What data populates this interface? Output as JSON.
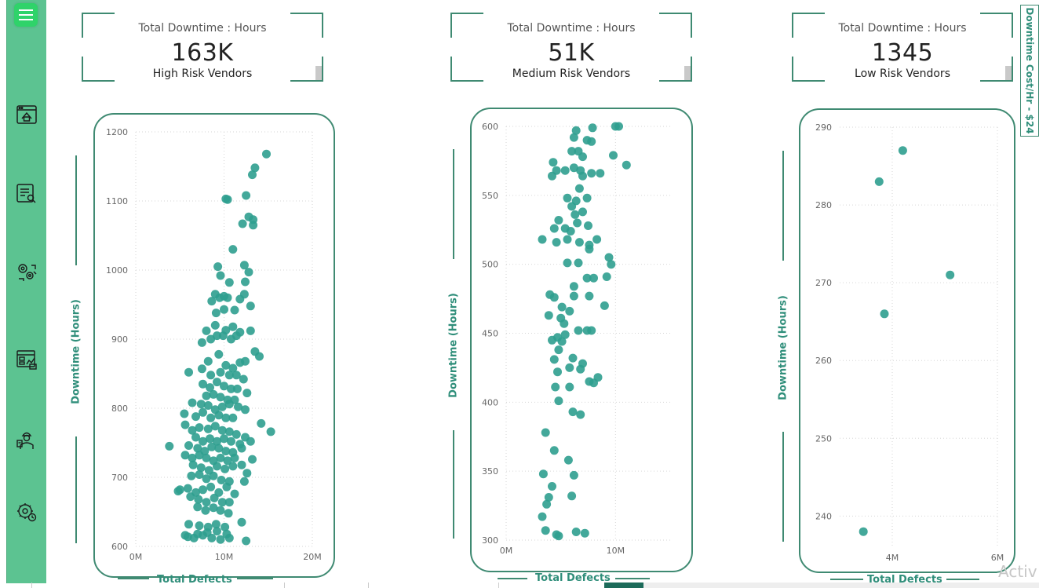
{
  "sidebar": {
    "color": "#5cc391",
    "menu_icon": "hamburger-menu-icon",
    "items": [
      {
        "icon": "home-window-icon"
      },
      {
        "icon": "report-search-icon"
      },
      {
        "icon": "gears-robot-icon"
      },
      {
        "icon": "dashboard-chart-icon"
      },
      {
        "icon": "worker-icon"
      },
      {
        "icon": "settings-clock-icon"
      }
    ]
  },
  "kpis": [
    {
      "title": "Total Downtime : Hours",
      "value": "163K",
      "subtitle": "High Risk Vendors"
    },
    {
      "title": "Total Downtime : Hours",
      "value": "51K",
      "subtitle": "Medium Risk Vendors"
    },
    {
      "title": "Total Downtime : Hours",
      "value": "1345",
      "subtitle": "Low Risk Vendors"
    }
  ],
  "side_tag": "Downtime Cost/Hr - $24",
  "watermark": "Activ",
  "accent_color": "#3f8a72",
  "point_color": "#2f9e8f",
  "chart_data": [
    {
      "type": "scatter",
      "xlabel": "Total Defects",
      "ylabel": "Downtime (Hours)",
      "xlim": [
        0,
        20
      ],
      "ylim": [
        600,
        1200
      ],
      "x_ticks": [
        "0M",
        "10M",
        "20M"
      ],
      "y_ticks": [
        "600",
        "700",
        "800",
        "900",
        "1000",
        "1100",
        "1200"
      ],
      "grid": true,
      "points": [
        [
          14.8,
          1168
        ],
        [
          13.5,
          1148
        ],
        [
          13.2,
          1138
        ],
        [
          12.5,
          1108
        ],
        [
          10.2,
          1103
        ],
        [
          10.4,
          1102
        ],
        [
          12.8,
          1077
        ],
        [
          13.3,
          1073
        ],
        [
          12.1,
          1067
        ],
        [
          13.3,
          1065
        ],
        [
          11.0,
          1030
        ],
        [
          9.3,
          1005
        ],
        [
          12.3,
          1007
        ],
        [
          9.6,
          992
        ],
        [
          12.8,
          997
        ],
        [
          10.6,
          982
        ],
        [
          12.4,
          983
        ],
        [
          9.0,
          965
        ],
        [
          10.0,
          962
        ],
        [
          12.3,
          965
        ],
        [
          8.6,
          955
        ],
        [
          9.5,
          960
        ],
        [
          10.4,
          960
        ],
        [
          11.8,
          958
        ],
        [
          13.0,
          948
        ],
        [
          9.1,
          938
        ],
        [
          10.0,
          943
        ],
        [
          11.2,
          942
        ],
        [
          8.0,
          912
        ],
        [
          9.0,
          920
        ],
        [
          10.2,
          913
        ],
        [
          11.0,
          918
        ],
        [
          11.8,
          910
        ],
        [
          13.0,
          912
        ],
        [
          7.5,
          895
        ],
        [
          8.5,
          900
        ],
        [
          9.2,
          905
        ],
        [
          9.9,
          905
        ],
        [
          10.8,
          900
        ],
        [
          11.4,
          905
        ],
        [
          13.5,
          882
        ],
        [
          14.0,
          875
        ],
        [
          8.2,
          868
        ],
        [
          9.4,
          878
        ],
        [
          10.2,
          862
        ],
        [
          11.0,
          858
        ],
        [
          11.8,
          866
        ],
        [
          12.4,
          868
        ],
        [
          6.0,
          852
        ],
        [
          7.5,
          857
        ],
        [
          8.5,
          848
        ],
        [
          9.6,
          852
        ],
        [
          10.6,
          848
        ],
        [
          11.4,
          848
        ],
        [
          12.2,
          842
        ],
        [
          7.6,
          835
        ],
        [
          8.4,
          830
        ],
        [
          9.2,
          838
        ],
        [
          10.0,
          832
        ],
        [
          10.8,
          828
        ],
        [
          11.5,
          828
        ],
        [
          12.6,
          822
        ],
        [
          8.0,
          818
        ],
        [
          8.8,
          820
        ],
        [
          9.6,
          816
        ],
        [
          10.4,
          812
        ],
        [
          11.2,
          812
        ],
        [
          6.4,
          808
        ],
        [
          7.4,
          806
        ],
        [
          8.2,
          804
        ],
        [
          9.0,
          798
        ],
        [
          9.8,
          802
        ],
        [
          10.6,
          806
        ],
        [
          11.6,
          802
        ],
        [
          12.4,
          798
        ],
        [
          5.5,
          792
        ],
        [
          6.8,
          788
        ],
        [
          7.6,
          794
        ],
        [
          8.5,
          786
        ],
        [
          9.4,
          790
        ],
        [
          10.2,
          786
        ],
        [
          11.0,
          786
        ],
        [
          14.2,
          778
        ],
        [
          15.3,
          766
        ],
        [
          5.6,
          776
        ],
        [
          6.4,
          768
        ],
        [
          7.2,
          772
        ],
        [
          8.2,
          770
        ],
        [
          9.0,
          774
        ],
        [
          9.8,
          768
        ],
        [
          10.6,
          766
        ],
        [
          11.4,
          762
        ],
        [
          12.4,
          758
        ],
        [
          6.8,
          758
        ],
        [
          7.6,
          752
        ],
        [
          8.4,
          756
        ],
        [
          9.2,
          752
        ],
        [
          10.0,
          756
        ],
        [
          10.8,
          752
        ],
        [
          11.8,
          748
        ],
        [
          13.0,
          752
        ],
        [
          3.8,
          745
        ],
        [
          6.0,
          746
        ],
        [
          7.0,
          742
        ],
        [
          7.8,
          738
        ],
        [
          8.6,
          744
        ],
        [
          9.4,
          742
        ],
        [
          10.2,
          738
        ],
        [
          11.0,
          736
        ],
        [
          12.0,
          742
        ],
        [
          5.6,
          732
        ],
        [
          6.4,
          728
        ],
        [
          7.2,
          732
        ],
        [
          8.0,
          728
        ],
        [
          8.8,
          724
        ],
        [
          9.6,
          728
        ],
        [
          10.4,
          724
        ],
        [
          11.2,
          728
        ],
        [
          12.0,
          718
        ],
        [
          13.2,
          726
        ],
        [
          6.5,
          718
        ],
        [
          7.4,
          714
        ],
        [
          8.3,
          710
        ],
        [
          9.2,
          716
        ],
        [
          10.1,
          712
        ],
        [
          11.0,
          716
        ],
        [
          12.6,
          706
        ],
        [
          6.3,
          702
        ],
        [
          7.2,
          704
        ],
        [
          8.0,
          698
        ],
        [
          8.8,
          702
        ],
        [
          9.7,
          696
        ],
        [
          10.6,
          694
        ],
        [
          12.3,
          694
        ],
        [
          5.0,
          682
        ],
        [
          5.9,
          684
        ],
        [
          6.8,
          678
        ],
        [
          7.6,
          682
        ],
        [
          8.5,
          686
        ],
        [
          9.4,
          678
        ],
        [
          10.3,
          686
        ],
        [
          11.2,
          676
        ],
        [
          4.8,
          680
        ],
        [
          6.2,
          672
        ],
        [
          7.1,
          668
        ],
        [
          8.0,
          664
        ],
        [
          8.9,
          670
        ],
        [
          9.8,
          664
        ],
        [
          10.6,
          664
        ],
        [
          7.0,
          657
        ],
        [
          7.9,
          652
        ],
        [
          8.8,
          656
        ],
        [
          9.6,
          652
        ],
        [
          10.5,
          648
        ],
        [
          6.0,
          632
        ],
        [
          7.2,
          630
        ],
        [
          8.2,
          628
        ],
        [
          9.1,
          632
        ],
        [
          10.1,
          628
        ],
        [
          12.0,
          635
        ],
        [
          5.6,
          616
        ],
        [
          6.6,
          612
        ],
        [
          7.6,
          616
        ],
        [
          8.6,
          612
        ],
        [
          9.6,
          610
        ],
        [
          10.6,
          612
        ],
        [
          12.5,
          608
        ],
        [
          5.9,
          614
        ],
        [
          7.0,
          618
        ],
        [
          8.1,
          620
        ],
        [
          9.2,
          622
        ],
        [
          10.3,
          618
        ]
      ]
    },
    {
      "type": "scatter",
      "xlabel": "Total Defects",
      "ylabel": "Downtime (Hours)",
      "xlim": [
        0,
        15
      ],
      "ylim": [
        300,
        600
      ],
      "x_ticks": [
        "0M",
        "10M"
      ],
      "y_ticks": [
        "300",
        "350",
        "400",
        "450",
        "500",
        "550",
        "600"
      ],
      "grid": true,
      "points": [
        [
          6.4,
          597
        ],
        [
          7.9,
          599
        ],
        [
          10.0,
          600
        ],
        [
          10.3,
          600
        ],
        [
          6.2,
          592
        ],
        [
          7.4,
          590
        ],
        [
          7.8,
          589
        ],
        [
          6.0,
          582
        ],
        [
          6.6,
          582
        ],
        [
          7.0,
          578
        ],
        [
          9.8,
          579
        ],
        [
          11.0,
          572
        ],
        [
          4.3,
          574
        ],
        [
          6.2,
          570
        ],
        [
          4.6,
          568
        ],
        [
          5.4,
          568
        ],
        [
          6.8,
          568
        ],
        [
          7.8,
          566
        ],
        [
          8.6,
          566
        ],
        [
          4.2,
          564
        ],
        [
          7.0,
          564
        ],
        [
          6.7,
          555
        ],
        [
          5.6,
          548
        ],
        [
          6.4,
          546
        ],
        [
          7.4,
          548
        ],
        [
          6.0,
          542
        ],
        [
          7.0,
          538
        ],
        [
          6.3,
          536
        ],
        [
          4.8,
          532
        ],
        [
          6.5,
          530
        ],
        [
          5.4,
          526
        ],
        [
          7.5,
          528
        ],
        [
          4.4,
          526
        ],
        [
          5.9,
          524
        ],
        [
          3.3,
          518
        ],
        [
          5.6,
          518
        ],
        [
          6.7,
          516
        ],
        [
          7.6,
          514
        ],
        [
          8.3,
          518
        ],
        [
          4.6,
          516
        ],
        [
          7.6,
          511
        ],
        [
          9.4,
          505
        ],
        [
          5.6,
          501
        ],
        [
          6.6,
          501
        ],
        [
          9.6,
          500
        ],
        [
          8.0,
          490
        ],
        [
          9.2,
          491
        ],
        [
          6.2,
          484
        ],
        [
          7.4,
          490
        ],
        [
          4.0,
          478
        ],
        [
          4.4,
          476
        ],
        [
          5.1,
          469
        ],
        [
          6.2,
          477
        ],
        [
          7.6,
          477
        ],
        [
          9.0,
          470
        ],
        [
          5.8,
          466
        ],
        [
          3.9,
          463
        ],
        [
          5.0,
          461
        ],
        [
          5.3,
          457
        ],
        [
          6.6,
          452
        ],
        [
          7.4,
          452
        ],
        [
          7.8,
          452
        ],
        [
          5.4,
          449
        ],
        [
          4.7,
          447
        ],
        [
          4.2,
          445
        ],
        [
          5.1,
          444
        ],
        [
          4.8,
          438
        ],
        [
          6.1,
          432
        ],
        [
          4.4,
          431
        ],
        [
          7.0,
          428
        ],
        [
          5.8,
          425
        ],
        [
          4.7,
          422
        ],
        [
          6.8,
          424
        ],
        [
          8.4,
          418
        ],
        [
          7.6,
          415
        ],
        [
          8.0,
          414
        ],
        [
          4.5,
          411
        ],
        [
          5.8,
          411
        ],
        [
          4.8,
          401
        ],
        [
          6.1,
          393
        ],
        [
          6.8,
          391
        ],
        [
          3.6,
          378
        ],
        [
          4.4,
          365
        ],
        [
          5.7,
          358
        ],
        [
          3.4,
          348
        ],
        [
          6.2,
          347
        ],
        [
          4.2,
          339
        ],
        [
          3.9,
          331
        ],
        [
          6.0,
          332
        ],
        [
          3.7,
          326
        ],
        [
          3.3,
          317
        ],
        [
          3.6,
          307
        ],
        [
          6.4,
          306
        ],
        [
          7.2,
          305
        ],
        [
          4.8,
          303
        ],
        [
          4.6,
          304
        ]
      ]
    },
    {
      "type": "scatter",
      "xlabel": "Total Defects",
      "ylabel": "Downtime (Hours)",
      "xlim": [
        3,
        6
      ],
      "ylim": [
        236,
        290
      ],
      "x_ticks": [
        "4M",
        "6M"
      ],
      "y_ticks": [
        "240",
        "250",
        "260",
        "270",
        "280",
        "290"
      ],
      "grid": true,
      "points": [
        [
          4.2,
          287
        ],
        [
          3.75,
          283
        ],
        [
          5.1,
          271
        ],
        [
          3.85,
          266
        ],
        [
          3.45,
          238
        ]
      ]
    }
  ]
}
